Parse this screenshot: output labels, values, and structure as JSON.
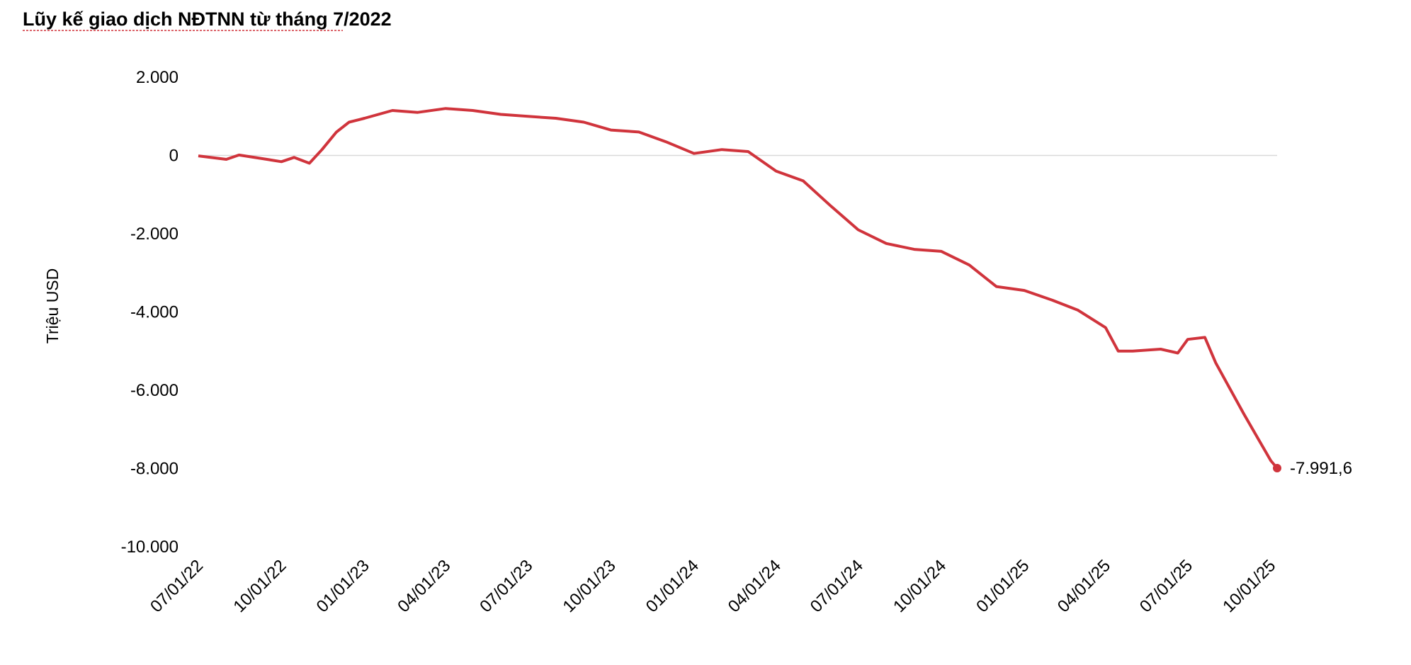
{
  "chart_data": {
    "type": "line",
    "title": "Lũy kế giao dịch NĐTNN từ tháng 7/2022",
    "y_label": "Triệu USD",
    "color": "#d0343c",
    "x": [
      "2022-07-01",
      "2022-08-01",
      "2022-08-15",
      "2022-09-15",
      "2022-10-01",
      "2022-10-15",
      "2022-11-01",
      "2022-11-15",
      "2022-12-01",
      "2022-12-15",
      "2023-01-01",
      "2023-02-01",
      "2023-03-01",
      "2023-04-01",
      "2023-05-01",
      "2023-06-01",
      "2023-07-01",
      "2023-08-01",
      "2023-09-01",
      "2023-10-01",
      "2023-11-01",
      "2023-12-01",
      "2024-01-01",
      "2024-02-01",
      "2024-03-01",
      "2024-04-01",
      "2024-05-01",
      "2024-06-01",
      "2024-07-01",
      "2024-08-01",
      "2024-09-01",
      "2024-10-01",
      "2024-11-01",
      "2024-12-01",
      "2025-01-01",
      "2025-02-01",
      "2025-03-01",
      "2025-04-01",
      "2025-04-15",
      "2025-05-01",
      "2025-06-01",
      "2025-06-20",
      "2025-07-01",
      "2025-07-20",
      "2025-08-01",
      "2025-09-01",
      "2025-10-01",
      "2025-10-08"
    ],
    "values": [
      -10,
      -100,
      10,
      -100,
      -160,
      -50,
      -200,
      150,
      600,
      850,
      950,
      1150,
      1100,
      1200,
      1150,
      1050,
      1000,
      950,
      850,
      650,
      600,
      350,
      50,
      150,
      100,
      -400,
      -650,
      -1300,
      -1900,
      -2250,
      -2400,
      -2450,
      -2800,
      -3350,
      -3450,
      -3700,
      -3950,
      -4400,
      -5000,
      -5000,
      -4950,
      -5050,
      -4700,
      -4650,
      -5300,
      -6600,
      -7800,
      -7991.6
    ],
    "value_labels": [
      null,
      null,
      null,
      null,
      null,
      null,
      null,
      null,
      null,
      null,
      null,
      null,
      null,
      null,
      null,
      null,
      null,
      null,
      null,
      null,
      null,
      null,
      null,
      null,
      null,
      null,
      null,
      null,
      null,
      null,
      null,
      null,
      null,
      null,
      null,
      null,
      null,
      null,
      null,
      null,
      null,
      null,
      null,
      null,
      null,
      null,
      null,
      "-7.991,6"
    ],
    "xlim": [
      "2022-07-01",
      "2025-10-08"
    ],
    "xticks": [
      {
        "value": "2022-07-01",
        "label": "07/01/22"
      },
      {
        "value": "2022-10-01",
        "label": "10/01/22"
      },
      {
        "value": "2023-01-01",
        "label": "01/01/23"
      },
      {
        "value": "2023-04-01",
        "label": "04/01/23"
      },
      {
        "value": "2023-07-01",
        "label": "07/01/23"
      },
      {
        "value": "2023-10-01",
        "label": "10/01/23"
      },
      {
        "value": "2024-01-01",
        "label": "01/01/24"
      },
      {
        "value": "2024-04-01",
        "label": "04/01/24"
      },
      {
        "value": "2024-07-01",
        "label": "07/01/24"
      },
      {
        "value": "2024-10-01",
        "label": "10/01/24"
      },
      {
        "value": "2025-01-01",
        "label": "01/01/25"
      },
      {
        "value": "2025-04-01",
        "label": "04/01/25"
      },
      {
        "value": "2025-07-01",
        "label": "07/01/25"
      },
      {
        "value": "2025-10-01",
        "label": "10/01/25"
      }
    ],
    "ylim": [
      -10000,
      2000
    ],
    "yticks": [
      {
        "value": 2000,
        "label": "2.000"
      },
      0,
      {
        "value": -2000,
        "label": "-2.000"
      },
      {
        "value": -4000,
        "label": "-4.000"
      },
      {
        "value": -6000,
        "label": "-6.000"
      },
      {
        "value": -8000,
        "label": "-8.000"
      },
      {
        "value": -10000,
        "label": "-10.000"
      }
    ],
    "grid": false
  }
}
